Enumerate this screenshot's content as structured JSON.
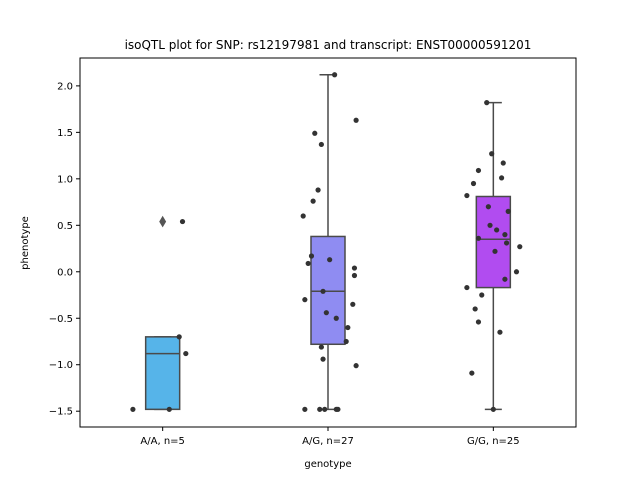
{
  "chart_data": {
    "type": "box",
    "title": "isoQTL plot for SNP: rs12197981 and transcript: ENST00000591201",
    "xlabel": "genotype",
    "ylabel": "phenotype",
    "ylim": [
      -1.67,
      2.3
    ],
    "yticks": [
      -1.5,
      -1.0,
      -0.5,
      0.0,
      0.5,
      1.0,
      1.5,
      2.0
    ],
    "ytick_labels": [
      "−1.5",
      "−1.0",
      "−0.5",
      "0.0",
      "0.5",
      "1.0",
      "1.5",
      "2.0"
    ],
    "grid": false,
    "categories": [
      "A/A, n=5",
      "A/G, n=27",
      "G/G, n=25"
    ],
    "boxes": [
      {
        "category": "A/A, n=5",
        "color": "#56b4e9",
        "whisker_low": -1.48,
        "q1": -1.48,
        "median": -0.88,
        "q3": -0.7,
        "whisker_high": -0.7,
        "outliers": [
          0.54
        ]
      },
      {
        "category": "A/G, n=27",
        "color": "#8f8cf2",
        "whisker_low": -1.48,
        "q1": -0.78,
        "median": -0.21,
        "q3": 0.38,
        "whisker_high": 2.12,
        "outliers": []
      },
      {
        "category": "G/G, n=25",
        "color": "#b14cf0",
        "whisker_low": -1.48,
        "q1": -0.17,
        "median": 0.35,
        "q3": 0.81,
        "whisker_high": 1.82,
        "outliers": []
      }
    ],
    "points": [
      {
        "category": "A/A, n=5",
        "values": [
          0.54,
          -0.7,
          -0.88,
          -1.48,
          -1.48
        ],
        "jitter": [
          0.12,
          0.1,
          0.14,
          -0.18,
          0.04
        ]
      },
      {
        "category": "A/G, n=27",
        "values": [
          2.12,
          1.63,
          1.49,
          1.37,
          0.88,
          0.76,
          0.6,
          0.17,
          0.13,
          0.09,
          0.04,
          -0.04,
          -0.21,
          -0.3,
          -0.35,
          -0.44,
          -0.5,
          -0.6,
          -0.75,
          -0.81,
          -0.94,
          -1.01,
          -1.48,
          -1.48,
          -1.48,
          -1.48,
          -1.48
        ],
        "jitter": [
          0.04,
          0.17,
          -0.08,
          -0.04,
          -0.06,
          -0.09,
          -0.15,
          -0.1,
          0.01,
          -0.12,
          0.16,
          0.16,
          -0.03,
          -0.14,
          0.15,
          -0.01,
          0.05,
          0.12,
          0.11,
          -0.04,
          -0.03,
          0.17,
          -0.14,
          -0.05,
          -0.02,
          0.05,
          0.06
        ]
      },
      {
        "category": "G/G, n=25",
        "values": [
          1.82,
          1.27,
          1.17,
          1.09,
          1.01,
          0.95,
          0.82,
          0.7,
          0.65,
          0.5,
          0.45,
          0.4,
          0.36,
          0.31,
          0.27,
          0.22,
          0.0,
          -0.08,
          -0.17,
          -0.25,
          -0.4,
          -0.54,
          -0.65,
          -1.09,
          -1.48
        ],
        "jitter": [
          -0.04,
          -0.01,
          0.06,
          -0.09,
          0.05,
          -0.12,
          -0.16,
          -0.03,
          0.09,
          -0.02,
          0.02,
          0.07,
          -0.09,
          0.08,
          0.16,
          0.01,
          0.14,
          0.07,
          -0.16,
          -0.07,
          -0.11,
          -0.09,
          0.04,
          -0.13,
          0.0
        ]
      }
    ]
  }
}
